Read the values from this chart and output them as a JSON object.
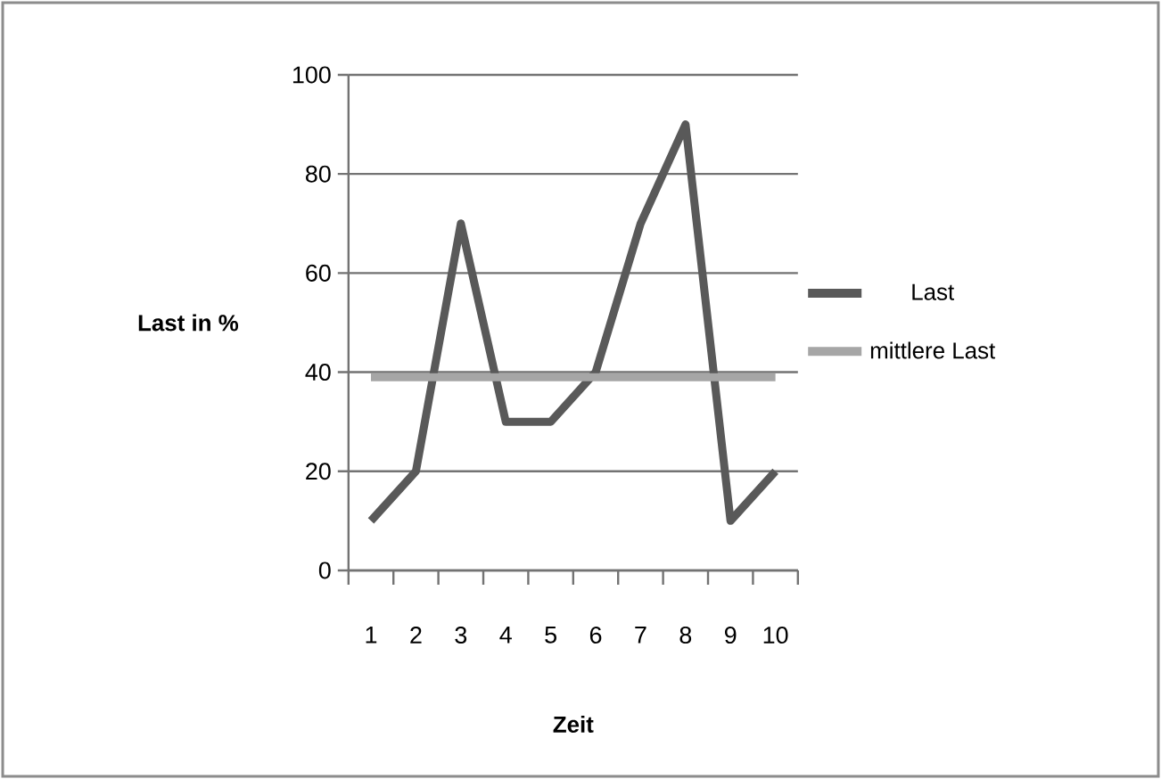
{
  "chart_data": {
    "type": "line",
    "xlabel": "Zeit",
    "ylabel": "Last in %",
    "categories": [
      "1",
      "2",
      "3",
      "4",
      "5",
      "6",
      "7",
      "8",
      "9",
      "10"
    ],
    "series": [
      {
        "name": "Last",
        "color": "#595959",
        "values": [
          10,
          20,
          70,
          30,
          30,
          40,
          70,
          90,
          10,
          20
        ]
      },
      {
        "name": "mittlere Last",
        "color": "#a6a6a6",
        "values": [
          39,
          39,
          39,
          39,
          39,
          39,
          39,
          39,
          39,
          39
        ]
      }
    ],
    "ylim": [
      0,
      100
    ],
    "yticks": [
      0,
      20,
      40,
      60,
      80,
      100
    ],
    "grid": "y",
    "legend": "right",
    "marker": "none",
    "line_style": "solid"
  }
}
